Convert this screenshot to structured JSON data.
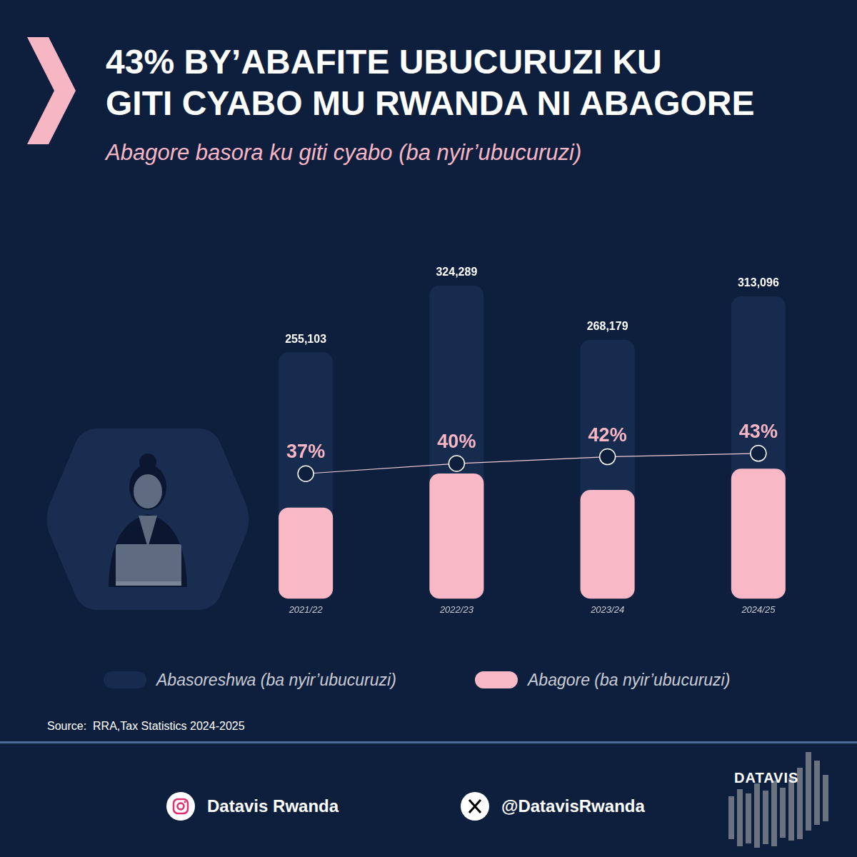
{
  "chart_data": {
    "type": "bar",
    "title": [
      "43% BY’ABAFITE UBUCURUZI KU",
      "GITI CYABO MU RWANDA NI ABAGORE"
    ],
    "subtitle": "Abagore basora ku giti cyabo (ba nyir’ubucuruzi)",
    "categories": [
      "2021/22",
      "2022/23",
      "2023/24",
      "2024/25"
    ],
    "series": [
      {
        "name": "Abasoreshwa (ba nyir’ubucuruzi)",
        "type": "bar",
        "color": "#172b4f",
        "values": [
          255103,
          324289,
          268179,
          313096
        ],
        "value_labels": [
          "255,103",
          "324,289",
          "268,179",
          "313,096"
        ],
        "data_labels": true
      },
      {
        "name": "Abagore (ba nyir’ubucuruzi)",
        "type": "bar",
        "color": "#f9b8c6",
        "values": [
          94388,
          129716,
          112635,
          134631
        ],
        "data_labels": false
      },
      {
        "type": "line",
        "axis": "y2",
        "color": "#f3c9d3",
        "marker": "circle",
        "values": [
          37,
          40,
          42,
          43
        ],
        "value_labels": [
          "37%",
          "40%",
          "42%",
          "43%"
        ],
        "data_labels": true
      }
    ],
    "ylim": [
      0,
      350000
    ],
    "y2lim": [
      0,
      100
    ],
    "grid": false,
    "tick_labels": "x",
    "legend": "bottom",
    "source": "Source:  RRA,Tax Statistics 2024-2025"
  },
  "footer": {
    "instagram": "Datavis Rwanda",
    "x_handle": "@DatavisRwanda",
    "logo": "DATAVIS"
  }
}
